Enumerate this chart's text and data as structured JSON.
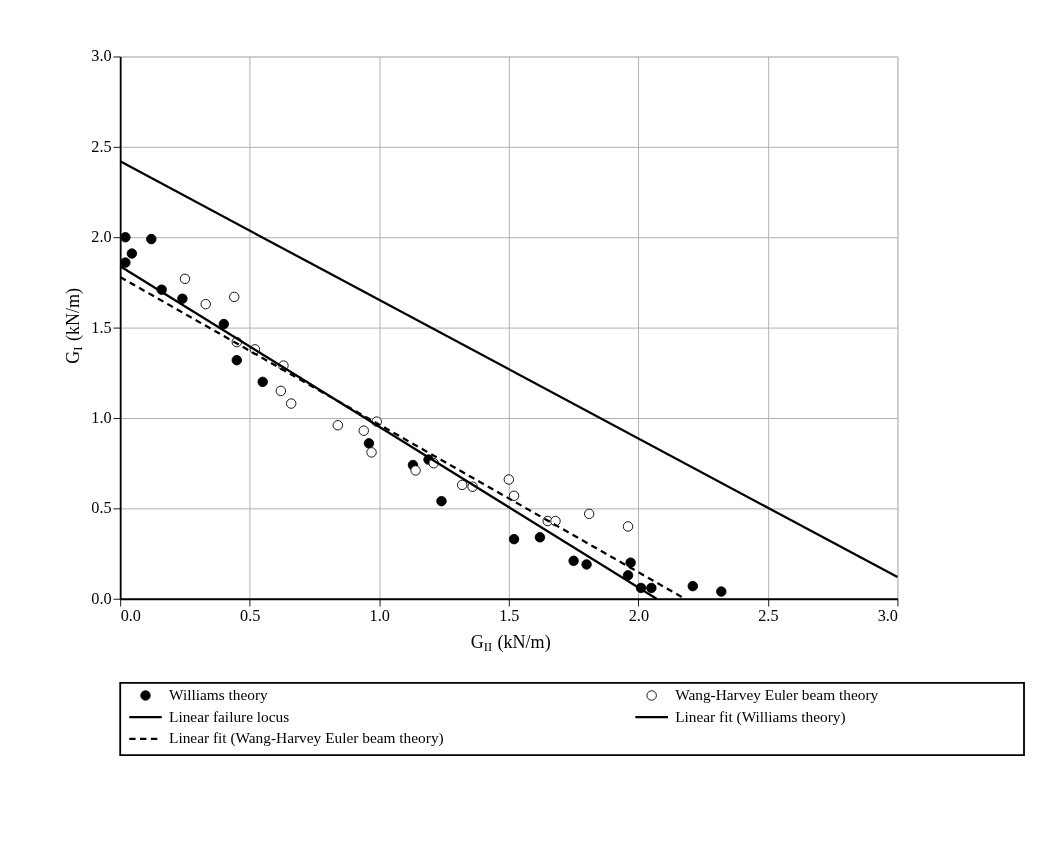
{
  "chart_data": {
    "type": "scatter",
    "xlabel": "G$_{II}$ (kN/m)",
    "ylabel": "G$_{I}$ (kN/m)",
    "xlim": [
      0,
      3
    ],
    "ylim": [
      0,
      3
    ],
    "xticks": [
      {
        "value": 0,
        "label": "0.0"
      },
      0.5,
      {
        "value": 1,
        "label": "1.0"
      },
      1.5,
      {
        "value": 2,
        "label": "2.0"
      },
      2.5,
      {
        "value": 3,
        "label": "3.0"
      }
    ],
    "yticks": [
      {
        "value": 0,
        "label": "0.0"
      },
      0.5,
      {
        "value": 1,
        "label": "1.0"
      },
      1.5,
      {
        "value": 2,
        "label": "2.0"
      },
      2.5,
      {
        "value": 3,
        "label": "3.0"
      }
    ],
    "grid": true,
    "legend": "bottom",
    "series": [
      {
        "name": "Williams theory",
        "marker": "circle",
        "color": "#000000",
        "x": [
          0.02,
          0.02,
          0.045,
          0.12,
          0.16,
          0.24,
          0.4,
          0.45,
          0.55,
          0.96,
          1.13,
          1.19,
          1.24,
          1.52,
          1.62,
          1.75,
          1.8,
          1.97,
          1.96,
          2.01,
          2.05,
          2.21,
          2.32
        ],
        "values": [
          2.0,
          1.86,
          1.91,
          1.99,
          1.71,
          1.66,
          1.52,
          1.32,
          1.2,
          0.86,
          0.74,
          0.77,
          0.54,
          0.33,
          0.34,
          0.21,
          0.19,
          0.2,
          0.13,
          0.06,
          0.06,
          0.07,
          0.04
        ]
      },
      {
        "name": "Wang-Harvey Euler beam theory",
        "marker": "circle",
        "color": "#ffffff",
        "x": [
          0.25,
          0.33,
          0.44,
          0.45,
          0.52,
          0.63,
          0.62,
          0.66,
          0.84,
          0.94,
          0.99,
          0.97,
          1.14,
          1.21,
          1.32,
          1.36,
          1.5,
          1.52,
          1.65,
          1.68,
          1.81,
          1.96
        ],
        "values": [
          1.77,
          1.63,
          1.67,
          1.42,
          1.38,
          1.29,
          1.15,
          1.08,
          0.96,
          0.93,
          0.98,
          0.81,
          0.71,
          0.75,
          0.63,
          0.62,
          0.66,
          0.57,
          0.43,
          0.43,
          0.47,
          0.4
        ]
      },
      {
        "name": "Linear failure locus",
        "type": "line",
        "line_style": "solid",
        "marker": "none",
        "color": "#000000",
        "x": [
          0,
          3
        ],
        "values": [
          2.42,
          0.12
        ]
      },
      {
        "name": "Linear fit (Williams theory)",
        "type": "line",
        "line_style": "solid",
        "marker": "none",
        "color": "#000000",
        "x": [
          0,
          2.07
        ],
        "values": [
          1.84,
          0
        ]
      },
      {
        "name": "Linear fit (Wang-Harvey Euler beam theory)",
        "type": "line",
        "line_style": "dashed",
        "marker": "none",
        "color": "#000000",
        "x": [
          0,
          2.18
        ],
        "values": [
          1.78,
          0
        ]
      }
    ]
  }
}
